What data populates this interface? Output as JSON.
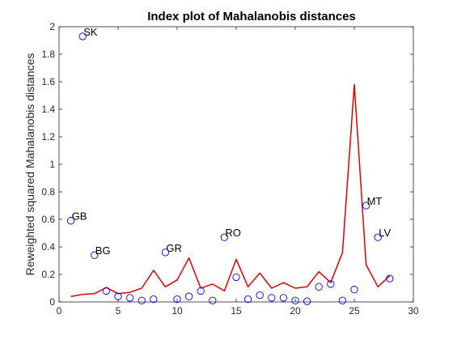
{
  "chart_data": {
    "type": "scatter",
    "title": "Index plot of Mahalanobis distances",
    "xlabel": "",
    "ylabel": "Reweighted squared Mahalanobis distances",
    "xlim": [
      0,
      30
    ],
    "ylim": [
      0,
      2
    ],
    "xticks": [
      "0",
      "5",
      "10",
      "15",
      "20",
      "25",
      "30"
    ],
    "yticks": [
      "0",
      "0.2",
      "0.4",
      "0.6",
      "0.8",
      "1",
      "1.2",
      "1.4",
      "1.6",
      "1.8",
      "2"
    ],
    "grid": false,
    "box": true,
    "series": [
      {
        "kind": "markers",
        "marker": "circle",
        "color": "#0000ff",
        "x": [
          1,
          2,
          3,
          4,
          5,
          6,
          7,
          8,
          9,
          10,
          11,
          12,
          13,
          14,
          15,
          16,
          17,
          18,
          19,
          20,
          21,
          22,
          23,
          24,
          25,
          26,
          27,
          28
        ],
        "y": [
          0.59,
          1.93,
          0.34,
          0.08,
          0.04,
          0.03,
          0.01,
          0.02,
          0.36,
          0.02,
          0.04,
          0.08,
          0.01,
          0.47,
          0.18,
          0.02,
          0.05,
          0.03,
          0.03,
          0.01,
          0.005,
          0.11,
          0.13,
          0.01,
          0.09,
          0.7,
          0.47,
          0.17
        ]
      },
      {
        "kind": "line",
        "color": "#e00000",
        "x": [
          1,
          2,
          3,
          4,
          5,
          6,
          7,
          8,
          9,
          10,
          11,
          12,
          13,
          14,
          15,
          16,
          17,
          18,
          19,
          20,
          21,
          22,
          23,
          24,
          25,
          26,
          27,
          28
        ],
        "y": [
          0.04,
          0.055,
          0.06,
          0.105,
          0.06,
          0.07,
          0.1,
          0.23,
          0.11,
          0.16,
          0.32,
          0.1,
          0.13,
          0.08,
          0.31,
          0.11,
          0.21,
          0.1,
          0.14,
          0.1,
          0.11,
          0.22,
          0.14,
          0.36,
          1.58,
          0.27,
          0.11,
          0.19
        ]
      }
    ],
    "annotations": [
      {
        "text": "SK",
        "x": 2,
        "y": 1.93
      },
      {
        "text": "GB",
        "x": 1,
        "y": 0.59
      },
      {
        "text": "BG",
        "x": 3,
        "y": 0.34
      },
      {
        "text": "GR",
        "x": 9,
        "y": 0.36
      },
      {
        "text": "RO",
        "x": 14,
        "y": 0.47
      },
      {
        "text": "MT",
        "x": 26,
        "y": 0.7
      },
      {
        "text": "LV",
        "x": 27,
        "y": 0.47
      }
    ]
  }
}
